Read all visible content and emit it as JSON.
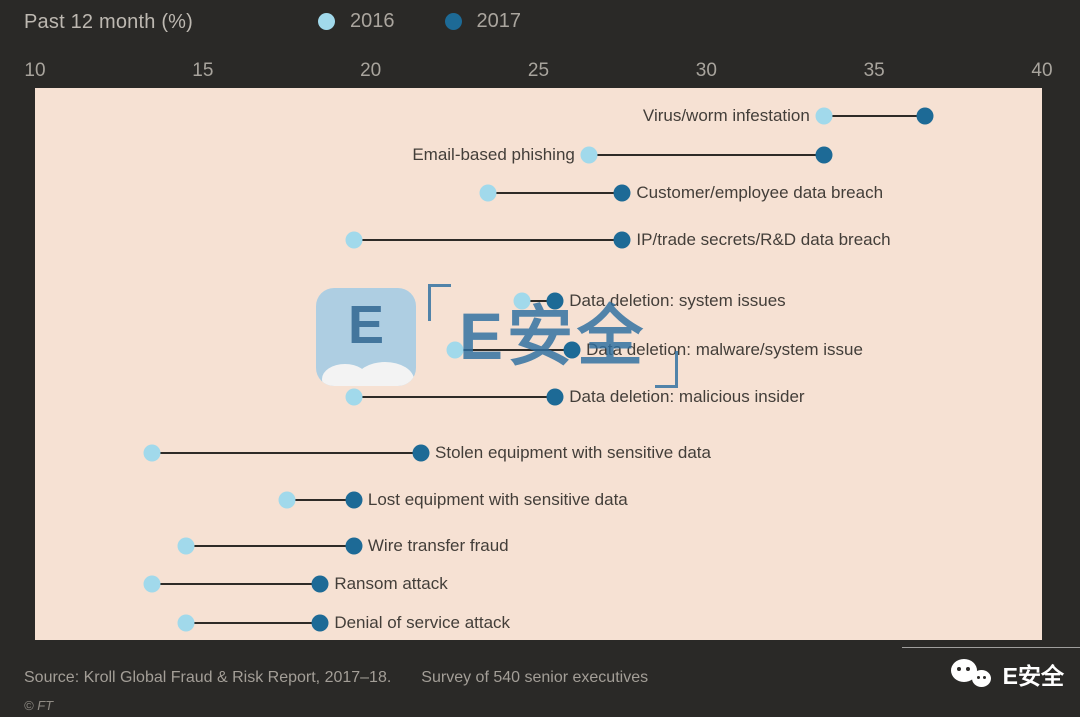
{
  "colors": {
    "background": "#2a2927",
    "plot_bg": "#f6e1d3",
    "c2016": "#a1d9eb",
    "c2017": "#1d6a96",
    "connector": "#2e2b27",
    "label_text": "#433e39",
    "watermark_blue": "#2e6fa0"
  },
  "header": {
    "title": "Past 12 month (%)",
    "legend": [
      {
        "label": "2016"
      },
      {
        "label": "2017"
      }
    ]
  },
  "chart_data": {
    "type": "dumbbell",
    "title": "Past 12 month (%)",
    "xlim": [
      10,
      40
    ],
    "x_ticks": [
      10,
      15,
      20,
      25,
      30,
      35,
      40
    ],
    "series_names": [
      "2016",
      "2017"
    ],
    "rows": [
      {
        "label": "Virus/worm infestation",
        "v2016": 33.5,
        "v2017": 36.5,
        "label_side": "left"
      },
      {
        "label": "Email-based phishing",
        "v2016": 26.5,
        "v2017": 33.5,
        "label_side": "left"
      },
      {
        "label": "Customer/employee data breach",
        "v2016": 23.5,
        "v2017": 27.5,
        "label_side": "right"
      },
      {
        "label": "IP/trade secrets/R&D data breach",
        "v2016": 19.5,
        "v2017": 27.5,
        "label_side": "right"
      },
      {
        "label": "Data deletion: system issues",
        "v2016": 24.5,
        "v2017": 25.5,
        "label_side": "right"
      },
      {
        "label": "Data deletion: malware/system issue",
        "v2016": 22.5,
        "v2017": 26.0,
        "label_side": "right"
      },
      {
        "label": "Data deletion: malicious insider",
        "v2016": 19.5,
        "v2017": 25.5,
        "label_side": "right"
      },
      {
        "label": "Stolen equipment with sensitive data",
        "v2016": 13.5,
        "v2017": 21.5,
        "label_side": "right"
      },
      {
        "label": "Lost equipment with sensitive data",
        "v2016": 17.5,
        "v2017": 19.5,
        "label_side": "right"
      },
      {
        "label": "Wire transfer fraud",
        "v2016": 14.5,
        "v2017": 19.5,
        "label_side": "right"
      },
      {
        "label": "Ransom attack",
        "v2016": 13.5,
        "v2017": 18.5,
        "label_side": "right"
      },
      {
        "label": "Denial of service attack",
        "v2016": 14.5,
        "v2017": 18.5,
        "label_side": "right"
      }
    ]
  },
  "watermark": {
    "logo_letter": "E",
    "text": "E安全"
  },
  "footer": {
    "source": "Source: Kroll Global Fraud & Risk Report, 2017–18.",
    "survey": "Survey of 540 senior executives",
    "copyright": "© FT",
    "wechat_label": "E安全"
  }
}
